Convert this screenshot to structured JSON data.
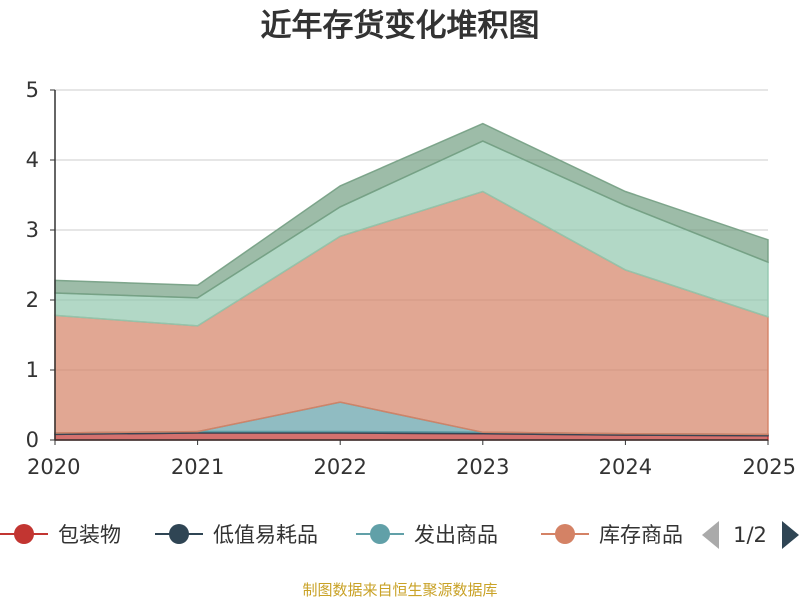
{
  "chart_data": {
    "type": "area",
    "stacked": true,
    "title": "近年存货变化堆积图",
    "ylabel": "",
    "xlabel": "",
    "categories": [
      "2020",
      "2021",
      "2022",
      "2023",
      "2024",
      "2025"
    ],
    "ylim": [
      0,
      5
    ],
    "yticks": [
      "0",
      "1",
      "2",
      "3",
      "4",
      "5"
    ],
    "grid": true,
    "series": [
      {
        "name": "包装物",
        "color": "#c23531",
        "values": [
          0.08,
          0.1,
          0.1,
          0.09,
          0.07,
          0.06
        ]
      },
      {
        "name": "低值易耗品",
        "color": "#2f4554",
        "values": [
          0.02,
          0.02,
          0.02,
          0.02,
          0.02,
          0.02
        ]
      },
      {
        "name": "发出商品",
        "color": "#61a0a8",
        "values": [
          0.0,
          0.0,
          0.42,
          0.0,
          0.0,
          0.0
        ]
      },
      {
        "name": "库存商品",
        "color": "#d48265",
        "values": [
          1.68,
          1.51,
          2.37,
          3.44,
          2.34,
          1.68
        ]
      },
      {
        "name": "",
        "color": "#91c7ae",
        "values": [
          0.32,
          0.4,
          0.42,
          0.72,
          0.92,
          0.78
        ]
      },
      {
        "name": "",
        "color": "#749f83",
        "values": [
          0.18,
          0.18,
          0.3,
          0.25,
          0.2,
          0.32
        ]
      }
    ]
  },
  "legend": {
    "items": [
      {
        "label": "包装物",
        "color": "#c23531"
      },
      {
        "label": "低值易耗品",
        "color": "#2f4554"
      },
      {
        "label": "发出商品",
        "color": "#61a0a8"
      },
      {
        "label": "库存商品",
        "color": "#d48265"
      }
    ],
    "page": "1/2"
  },
  "source": "制图数据来自恒生聚源数据库"
}
